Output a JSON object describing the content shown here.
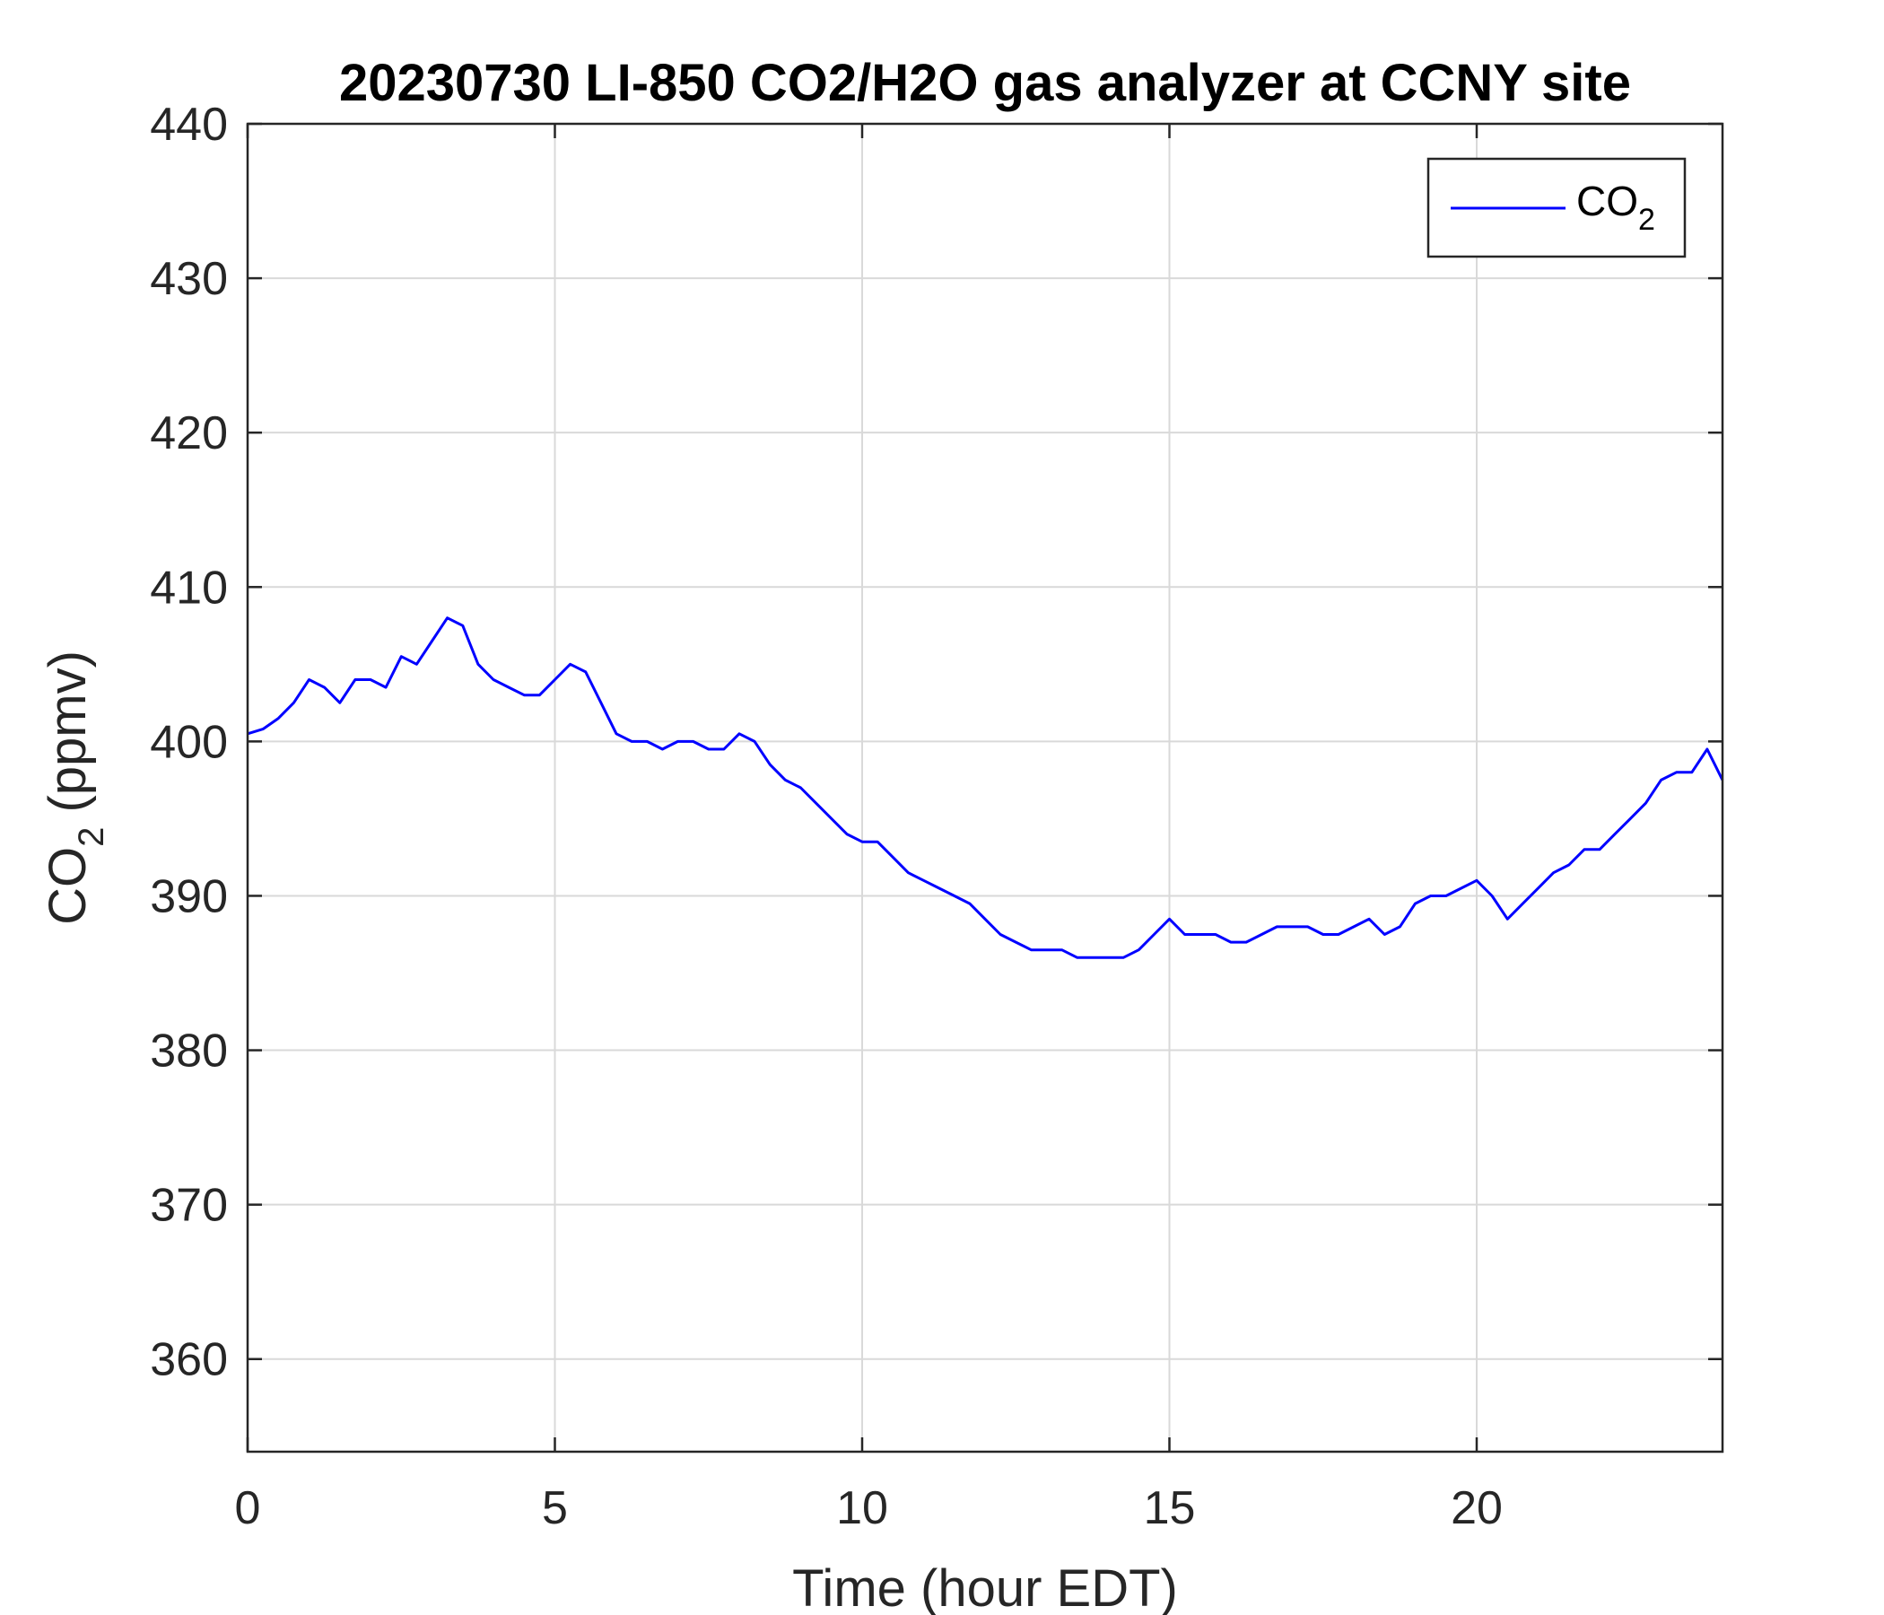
{
  "chart_data": {
    "type": "line",
    "title": "20230730 LI-850 CO2/H2O gas analyzer at CCNY site",
    "xlabel": "Time (hour EDT)",
    "ylabel": {
      "main": "CO",
      "sub": "2",
      "tail": " (ppmv)"
    },
    "xlim": [
      0,
      24
    ],
    "ylim": [
      354,
      440
    ],
    "xticks": [
      0,
      5,
      10,
      15,
      20
    ],
    "yticks": [
      360,
      370,
      380,
      390,
      400,
      410,
      420,
      430,
      440
    ],
    "grid": true,
    "legend_position": "top-right",
    "colors": {
      "series": "#0000ff",
      "grid": "#d9d9d9",
      "axis": "#262626"
    },
    "series": [
      {
        "name": {
          "main": "CO",
          "sub": "2"
        },
        "x": [
          0.0,
          0.25,
          0.5,
          0.75,
          1.0,
          1.25,
          1.5,
          1.75,
          2.0,
          2.25,
          2.5,
          2.75,
          3.0,
          3.25,
          3.5,
          3.75,
          4.0,
          4.25,
          4.5,
          4.75,
          5.0,
          5.25,
          5.5,
          5.75,
          6.0,
          6.25,
          6.5,
          6.75,
          7.0,
          7.25,
          7.5,
          7.75,
          8.0,
          8.25,
          8.5,
          8.75,
          9.0,
          9.25,
          9.5,
          9.75,
          10.0,
          10.25,
          10.5,
          10.75,
          11.0,
          11.25,
          11.5,
          11.75,
          12.0,
          12.25,
          12.5,
          12.75,
          13.0,
          13.25,
          13.5,
          13.75,
          14.0,
          14.25,
          14.5,
          14.75,
          15.0,
          15.25,
          15.5,
          15.75,
          16.0,
          16.25,
          16.5,
          16.75,
          17.0,
          17.25,
          17.5,
          17.75,
          18.0,
          18.25,
          18.5,
          18.75,
          19.0,
          19.25,
          19.5,
          19.75,
          20.0,
          20.25,
          20.5,
          20.75,
          21.0,
          21.25,
          21.5,
          21.75,
          22.0,
          22.25,
          22.5,
          22.75,
          23.0,
          23.25,
          23.5,
          23.75,
          24.0
        ],
        "y": [
          400.5,
          400.8,
          401.5,
          402.5,
          404.0,
          403.5,
          402.5,
          404.0,
          404.0,
          403.5,
          405.5,
          405.0,
          406.5,
          408.0,
          407.5,
          405.0,
          404.0,
          403.5,
          403.0,
          403.0,
          404.0,
          405.0,
          404.5,
          402.5,
          400.5,
          400.0,
          400.0,
          399.5,
          400.0,
          400.0,
          399.5,
          399.5,
          400.5,
          400.0,
          398.5,
          397.5,
          397.0,
          396.0,
          395.0,
          394.0,
          393.5,
          393.5,
          392.5,
          391.5,
          391.0,
          390.5,
          390.0,
          389.5,
          388.5,
          387.5,
          387.0,
          386.5,
          386.5,
          386.5,
          386.0,
          386.0,
          386.0,
          386.0,
          386.5,
          387.5,
          388.5,
          387.5,
          387.5,
          387.5,
          387.0,
          387.0,
          387.5,
          388.0,
          388.0,
          388.0,
          387.5,
          387.5,
          388.0,
          388.5,
          387.5,
          388.0,
          389.5,
          390.0,
          390.0,
          390.5,
          391.0,
          390.0,
          388.5,
          389.5,
          390.5,
          391.5,
          392.0,
          393.0,
          393.0,
          394.0,
          395.0,
          396.0,
          397.5,
          398.0,
          398.0,
          399.5,
          397.5
        ]
      }
    ]
  }
}
